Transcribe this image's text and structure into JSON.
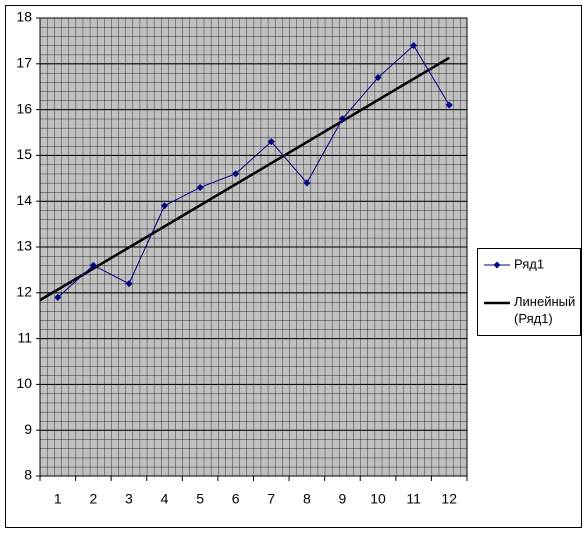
{
  "chart_data": {
    "type": "line",
    "categories": [
      "1",
      "2",
      "3",
      "4",
      "5",
      "6",
      "7",
      "8",
      "9",
      "10",
      "11",
      "12"
    ],
    "series": [
      {
        "name": "Ряд1",
        "color": "#000080",
        "values": [
          11.9,
          12.6,
          12.2,
          13.9,
          14.3,
          14.6,
          15.3,
          14.4,
          15.8,
          16.7,
          17.4,
          16.1
        ]
      }
    ],
    "trendline": {
      "name": "Линейный (Ряд1)",
      "color": "#000000",
      "x": [
        0.5,
        12
      ],
      "values": [
        11.84,
        17.13
      ]
    },
    "ylim": [
      8,
      18
    ],
    "yticks": [
      8,
      9,
      10,
      11,
      12,
      13,
      14,
      15,
      16,
      17,
      18
    ],
    "grid": true,
    "plot_background": "#c0c0c0",
    "legend": "right"
  }
}
